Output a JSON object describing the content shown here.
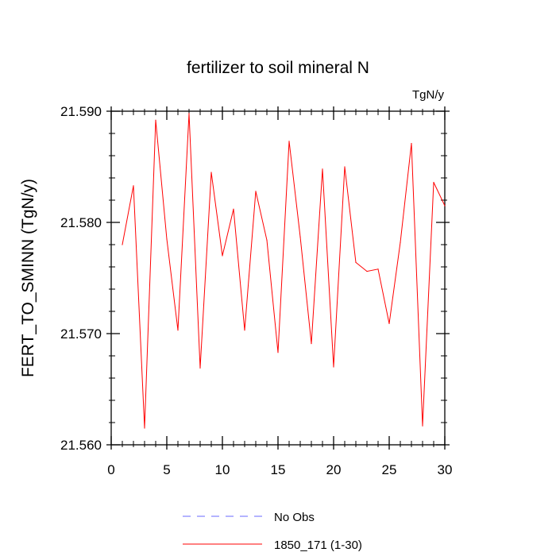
{
  "chart_data": {
    "type": "line",
    "title": "fertilizer to soil mineral N",
    "units_label": "TgN/y",
    "ylabel": "FERT_TO_SMINN  (TgN/y)",
    "xlabel": "",
    "xlim": [
      0,
      30
    ],
    "ylim": [
      21.56,
      21.59
    ],
    "x_ticks": [
      0,
      5,
      10,
      15,
      20,
      25,
      30
    ],
    "x_tick_labels": [
      "0",
      "5",
      "10",
      "15",
      "20",
      "25",
      "30"
    ],
    "y_ticks": [
      21.56,
      21.57,
      21.58,
      21.59
    ],
    "y_tick_labels": [
      "21.560",
      "21.570",
      "21.580",
      "21.590"
    ],
    "series": [
      {
        "name": "1850_171 (1-30)",
        "color": "#ff0000",
        "dash": "solid",
        "x": [
          1,
          2,
          3,
          4,
          5,
          6,
          7,
          8,
          9,
          10,
          11,
          12,
          13,
          14,
          15,
          16,
          17,
          18,
          19,
          20,
          21,
          22,
          23,
          24,
          25,
          26,
          27,
          28,
          29,
          30
        ],
        "values": [
          21.578,
          21.5833,
          21.5615,
          21.5892,
          21.5785,
          21.5703,
          21.5898,
          21.5669,
          21.5845,
          21.577,
          21.5812,
          21.5703,
          21.5828,
          21.5784,
          21.5683,
          21.5873,
          21.5787,
          21.5691,
          21.5848,
          21.567,
          21.585,
          21.5764,
          21.5756,
          21.5758,
          21.5709,
          21.5782,
          21.5871,
          21.5617,
          21.5836,
          21.5815
        ]
      }
    ],
    "legend": [
      {
        "label": "No Obs",
        "color": "#6a6aff",
        "dash": "dashed"
      },
      {
        "label": "1850_171 (1-30)",
        "color": "#ff0000",
        "dash": "solid"
      }
    ],
    "legend_position": "bottom"
  }
}
